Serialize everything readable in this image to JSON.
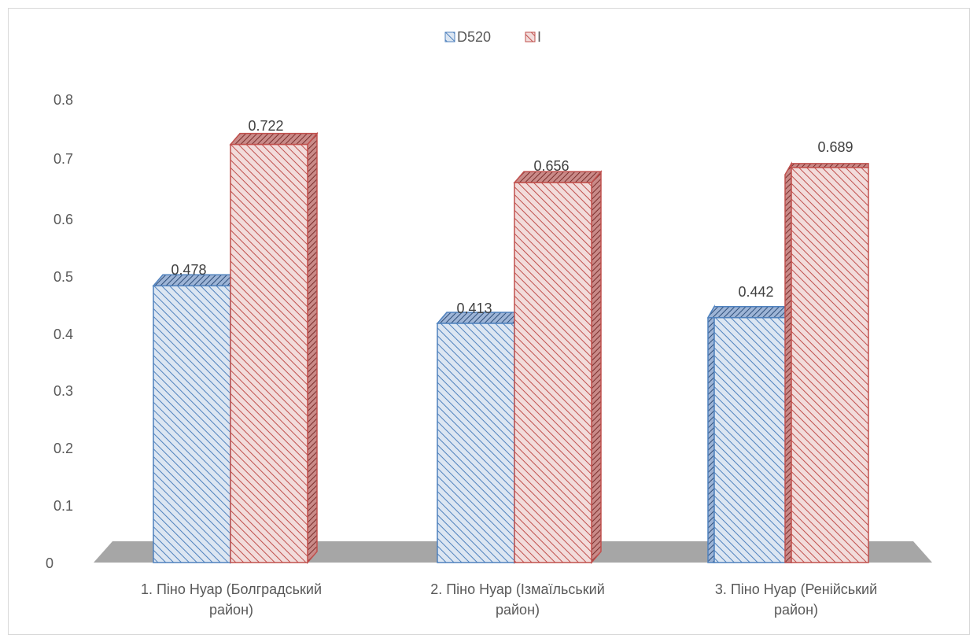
{
  "chart_data": {
    "type": "bar",
    "title": "",
    "xlabel": "",
    "ylabel": "",
    "categories": [
      [
        "1. Піно Нуар (Болградський",
        "район)"
      ],
      [
        "2. Піно Нуар (Ізмаїльський",
        "район)"
      ],
      [
        "3. Піно Нуар (Ренійський",
        "район)"
      ]
    ],
    "series": [
      {
        "name": "D520",
        "values": [
          0.478,
          0.413,
          0.442
        ],
        "value_labels": [
          "0.478",
          "0.413",
          "0.442"
        ],
        "color": "#4f81bd",
        "fill": "#dce6f2"
      },
      {
        "name": "I",
        "values": [
          0.722,
          0.656,
          0.689
        ],
        "value_labels": [
          "0.722",
          "0.656",
          "0.689"
        ],
        "color": "#c0504d",
        "fill": "#f2dcdb"
      }
    ],
    "ylim": [
      0,
      0.8
    ],
    "yticks": [
      "0",
      "0.1",
      "0.2",
      "0.3",
      "0.4",
      "0.5",
      "0.6",
      "0.7",
      "0.8"
    ],
    "legend_position": "top-center",
    "grid": false,
    "floor_color": "#a6a6a6"
  }
}
